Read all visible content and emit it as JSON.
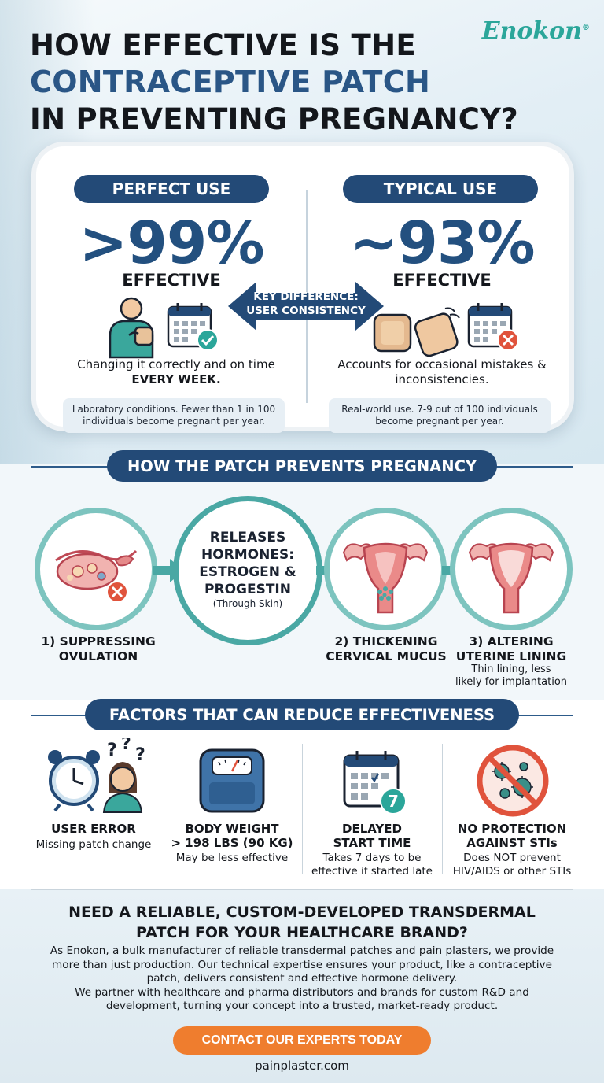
{
  "brand": {
    "name": "Enokon",
    "mark": "®"
  },
  "title": {
    "line1": "HOW EFFECTIVE IS THE",
    "line2": "CONTRACEPTIVE PATCH",
    "line3": "IN PREVENTING PREGNANCY?"
  },
  "comparison": {
    "perfect": {
      "label": "PERFECT USE",
      "value": ">99%",
      "effective": "EFFECTIVE",
      "desc_pre": "Changing it correctly and on time ",
      "desc_bold": "EVERY WEEK.",
      "note": "Laboratory conditions. Fewer than 1 in 100 individuals become pregnant per year."
    },
    "typical": {
      "label": "TYPICAL USE",
      "value": "~93%",
      "effective": "EFFECTIVE",
      "desc": "Accounts for occasional mistakes & inconsistencies.",
      "note": "Real-world use. 7-9 out of 100 individuals become pregnant per year."
    },
    "key_line1": "KEY DIFFERENCE:",
    "key_line2": "USER CONSISTENCY"
  },
  "mechanism": {
    "heading": "HOW THE PATCH PREVENTS PREGNANCY",
    "center_title_1": "RELEASES",
    "center_title_2": "HORMONES:",
    "center_title_3": "ESTROGEN &",
    "center_title_4": "PROGESTIN",
    "center_sub": "(Through Skin)",
    "steps": [
      {
        "title_1": "1) SUPPRESSING",
        "title_2": "OVULATION",
        "sub_1": "",
        "sub_2": ""
      },
      {
        "title_1": "2) THICKENING",
        "title_2": "CERVICAL MUCUS",
        "sub_1": "",
        "sub_2": ""
      },
      {
        "title_1": "3) ALTERING",
        "title_2": "UTERINE LINING",
        "sub_1": "Thin lining, less",
        "sub_2": "likely for implantation"
      }
    ]
  },
  "factors": {
    "heading": "FACTORS THAT CAN REDUCE EFFECTIVENESS",
    "items": [
      {
        "title_1": "USER ERROR",
        "title_2": "",
        "sub_1": "Missing patch change",
        "sub_2": ""
      },
      {
        "title_1": "BODY WEIGHT",
        "title_2": "> 198 LBS (90 KG)",
        "sub_1": "May be less effective",
        "sub_2": ""
      },
      {
        "title_1": "DELAYED",
        "title_2": "START TIME",
        "sub_1": "Takes 7 days to be",
        "sub_2": "effective if started late"
      },
      {
        "title_1": "NO PROTECTION",
        "title_2": "AGAINST STIs",
        "sub_1": "Does NOT prevent",
        "sub_2": "HIV/AIDS or other STIs"
      }
    ],
    "calendar_badge": "7"
  },
  "cta": {
    "question_1": "NEED A RELIABLE, CUSTOM-DEVELOPED TRANSDERMAL",
    "question_2": "PATCH FOR YOUR HEALTHCARE BRAND?",
    "body_1": "As Enokon, a bulk manufacturer of reliable transdermal patches and pain plasters, we provide",
    "body_2": "more than just production. Our technical expertise ensures your product, like a contraceptive",
    "body_3": "patch, delivers consistent and effective hormone delivery.",
    "body_4": "We partner with healthcare and pharma distributors and brands for custom R&D and",
    "body_5": "development, turning your concept into a trusted, market-ready product.",
    "button": "CONTACT OUR EXPERTS TODAY",
    "site": "painplaster.com"
  },
  "colors": {
    "navy": "#234a77",
    "teal": "#4aa8a4",
    "orange": "#ef7d2e",
    "red": "#e0533c",
    "green": "#2ba69a"
  }
}
